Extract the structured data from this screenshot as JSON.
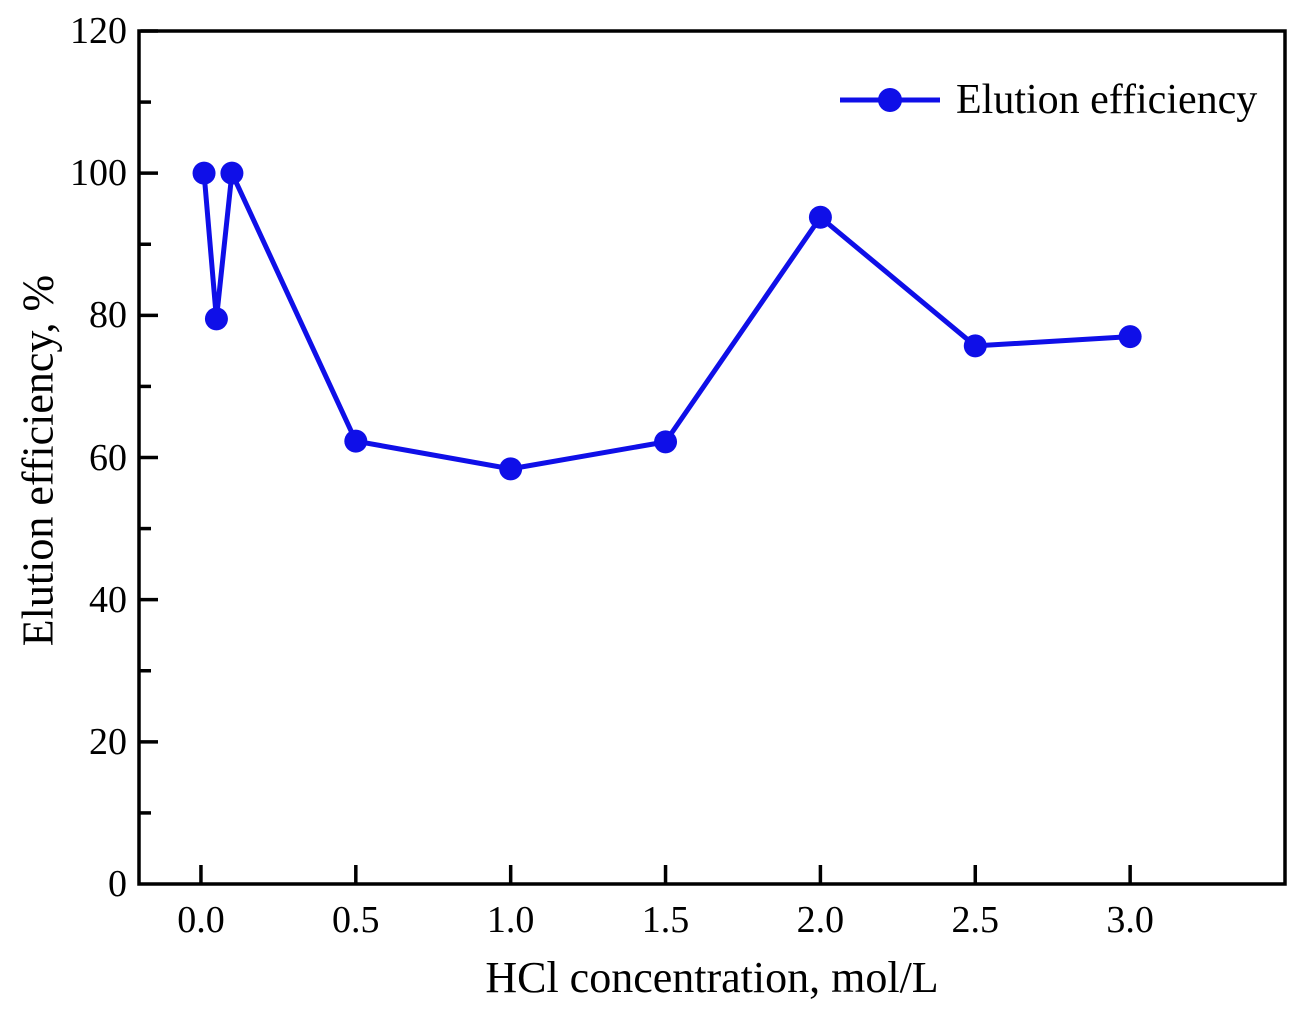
{
  "chart_data": {
    "type": "line",
    "title": "",
    "xlabel": "HCl concentration, mol/L",
    "ylabel": "Elution efficiency, %",
    "xlim": [
      -0.2,
      3.5
    ],
    "ylim": [
      0,
      120
    ],
    "grid": false,
    "series": [
      {
        "name": "Elution efficiency",
        "x": [
          0.01,
          0.05,
          0.1,
          0.5,
          1.0,
          1.5,
          2.0,
          2.5,
          3.0
        ],
        "y": [
          100,
          79.5,
          100,
          62.3,
          58.4,
          62.2,
          93.8,
          75.7,
          77.0
        ]
      }
    ],
    "x_major_ticks": [
      0.0,
      0.5,
      1.0,
      1.5,
      2.0,
      2.5,
      3.0
    ],
    "x_tick_labels": [
      "0.0",
      "0.5",
      "1.0",
      "1.5",
      "2.0",
      "2.5",
      "3.0"
    ],
    "y_major_ticks": [
      0,
      20,
      40,
      60,
      80,
      100,
      120
    ],
    "y_tick_labels": [
      "0",
      "20",
      "40",
      "60",
      "80",
      "100",
      "120"
    ],
    "y_minor_ticks": [
      10,
      30,
      50,
      70,
      90,
      110
    ],
    "legend": {
      "position": "top-right-inside",
      "label": "Elution efficiency"
    },
    "colors": {
      "series_line": "#0f0fe8",
      "marker_fill": "#0f0fe8",
      "axis": "#000000",
      "background": "#ffffff"
    }
  },
  "labels": {
    "xlabel": "HCl concentration, mol/L",
    "ylabel": "Elution efficiency, %",
    "legend_entry": "Elution efficiency"
  }
}
